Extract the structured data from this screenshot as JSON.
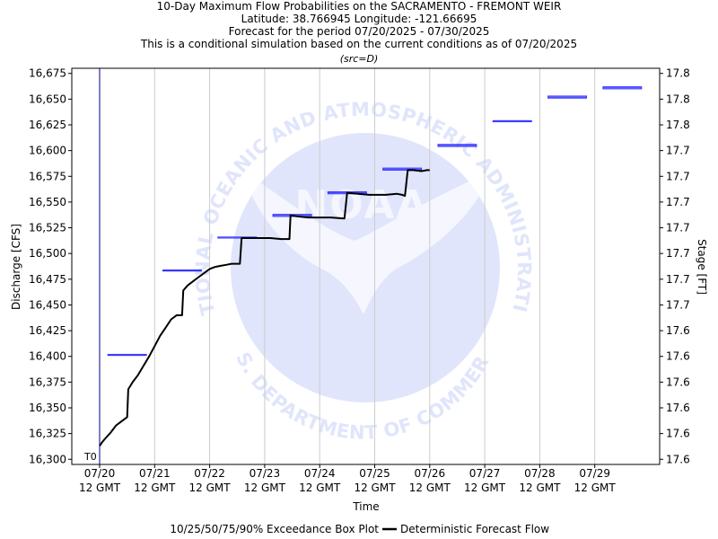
{
  "header": {
    "title": "10-Day Maximum Flow Probabilities on the SACRAMENTO - FREMONT WEIR",
    "location": "Latitude: 38.766945 Longitude: -121.66695",
    "period": "Forecast for the period 07/20/2025 - 07/30/2025",
    "note": "This is a conditional simulation based on the current conditions as of 07/20/2025",
    "source": "(src=D)"
  },
  "legend": {
    "box_label": "10/25/50/75/90% Exceedance Box Plot",
    "line_label": "Deterministic Forecast Flow"
  },
  "watermark": {
    "top_text": "NATIONAL OCEANIC AND ATMOSPHERIC ADMINISTRATION",
    "bottom_text": "U.S. DEPARTMENT OF COMMERCE",
    "logo_text": "NOAA"
  },
  "colors": {
    "box": "#3333ff",
    "line": "#000000",
    "t0": "#000080",
    "grid": "#cccccc",
    "watermark": "#dde3fb"
  },
  "chart_data": {
    "type": "line",
    "xlabel": "Time",
    "ylabel": "Discharge [CFS]",
    "y2label": "Stage [FT]",
    "t0_label": "T0",
    "xlim": [
      0,
      10.1
    ],
    "ylim": [
      16295,
      16680
    ],
    "x_ticks": [
      {
        "x": 0,
        "l1": "07/20",
        "l2": "12 GMT"
      },
      {
        "x": 1,
        "l1": "07/21",
        "l2": "12 GMT"
      },
      {
        "x": 2,
        "l1": "07/22",
        "l2": "12 GMT"
      },
      {
        "x": 3,
        "l1": "07/23",
        "l2": "12 GMT"
      },
      {
        "x": 4,
        "l1": "07/24",
        "l2": "12 GMT"
      },
      {
        "x": 5,
        "l1": "07/25",
        "l2": "12 GMT"
      },
      {
        "x": 6,
        "l1": "07/26",
        "l2": "12 GMT"
      },
      {
        "x": 7,
        "l1": "07/27",
        "l2": "12 GMT"
      },
      {
        "x": 8,
        "l1": "07/28",
        "l2": "12 GMT"
      },
      {
        "x": 9,
        "l1": "07/29",
        "l2": "12 GMT"
      }
    ],
    "y_ticks": [
      {
        "v": 16300,
        "l": "16,300"
      },
      {
        "v": 16325,
        "l": "16,325"
      },
      {
        "v": 16350,
        "l": "16,350"
      },
      {
        "v": 16375,
        "l": "16,375"
      },
      {
        "v": 16400,
        "l": "16,400"
      },
      {
        "v": 16425,
        "l": "16,425"
      },
      {
        "v": 16450,
        "l": "16,450"
      },
      {
        "v": 16475,
        "l": "16,475"
      },
      {
        "v": 16500,
        "l": "16,500"
      },
      {
        "v": 16525,
        "l": "16,525"
      },
      {
        "v": 16550,
        "l": "16,550"
      },
      {
        "v": 16575,
        "l": "16,575"
      },
      {
        "v": 16600,
        "l": "16,600"
      },
      {
        "v": 16625,
        "l": "16,625"
      },
      {
        "v": 16650,
        "l": "16,650"
      },
      {
        "v": 16675,
        "l": "16,675"
      }
    ],
    "y2_ticks": [
      {
        "v": 16300,
        "l": "17.6"
      },
      {
        "v": 16325,
        "l": "17.6"
      },
      {
        "v": 16350,
        "l": "17.6"
      },
      {
        "v": 16375,
        "l": "17.6"
      },
      {
        "v": 16400,
        "l": "17.6"
      },
      {
        "v": 16425,
        "l": "17.6"
      },
      {
        "v": 16450,
        "l": "17.7"
      },
      {
        "v": 16475,
        "l": "17.7"
      },
      {
        "v": 16500,
        "l": "17.7"
      },
      {
        "v": 16525,
        "l": "17.7"
      },
      {
        "v": 16550,
        "l": "17.7"
      },
      {
        "v": 16575,
        "l": "17.7"
      },
      {
        "v": 16600,
        "l": "17.7"
      },
      {
        "v": 16625,
        "l": "17.8"
      },
      {
        "v": 16650,
        "l": "17.8"
      },
      {
        "v": 16675,
        "l": "17.8"
      }
    ],
    "exceedance_boxes": [
      {
        "x0": 0.15,
        "x1": 0.85,
        "values": [
          16401,
          16401,
          16401,
          16402,
          16402
        ]
      },
      {
        "x0": 1.15,
        "x1": 1.85,
        "values": [
          16483,
          16483,
          16483,
          16484,
          16484
        ]
      },
      {
        "x0": 2.15,
        "x1": 2.85,
        "values": [
          16515,
          16515,
          16515,
          16516,
          16516
        ]
      },
      {
        "x0": 3.15,
        "x1": 3.85,
        "values": [
          16536,
          16537,
          16537,
          16538,
          16538
        ]
      },
      {
        "x0": 4.15,
        "x1": 4.85,
        "values": [
          16558,
          16559,
          16559,
          16560,
          16560
        ]
      },
      {
        "x0": 5.15,
        "x1": 5.85,
        "values": [
          16581,
          16581,
          16582,
          16583,
          16583
        ]
      },
      {
        "x0": 6.15,
        "x1": 6.85,
        "values": [
          16604,
          16604,
          16605,
          16606,
          16606
        ]
      },
      {
        "x0": 7.15,
        "x1": 7.85,
        "values": [
          16628,
          16628,
          16629,
          16629,
          16629
        ]
      },
      {
        "x0": 8.15,
        "x1": 8.85,
        "values": [
          16651,
          16651,
          16652,
          16653,
          16653
        ]
      },
      {
        "x0": 9.15,
        "x1": 9.85,
        "values": [
          16660,
          16660,
          16661,
          16662,
          16662
        ]
      }
    ],
    "deterministic": {
      "x": [
        0,
        0.05,
        0.1,
        0.2,
        0.3,
        0.4,
        0.5,
        0.52,
        0.6,
        0.7,
        0.8,
        0.9,
        1.0,
        1.1,
        1.2,
        1.3,
        1.4,
        1.5,
        1.52,
        1.6,
        1.7,
        1.8,
        1.9,
        2.0,
        2.1,
        2.2,
        2.3,
        2.4,
        2.55,
        2.58,
        2.7,
        2.9,
        3.1,
        3.3,
        3.45,
        3.47,
        3.6,
        3.8,
        4.0,
        4.2,
        4.45,
        4.5,
        4.7,
        4.9,
        5.0,
        5.2,
        5.4,
        5.5,
        5.55,
        5.6,
        5.7,
        5.85,
        5.95,
        6.0
      ],
      "y": [
        16313,
        16317,
        16320,
        16326,
        16333,
        16337,
        16341,
        16368,
        16375,
        16382,
        16391,
        16400,
        16410,
        16420,
        16428,
        16436,
        16440,
        16440,
        16464,
        16469,
        16473,
        16477,
        16481,
        16485,
        16487,
        16488,
        16489,
        16490,
        16490,
        16515,
        16515,
        16515,
        16515,
        16514,
        16514,
        16537,
        16536,
        16535,
        16535,
        16535,
        16534,
        16559,
        16558,
        16557,
        16557,
        16557,
        16558,
        16557,
        16556,
        16581,
        16581,
        16580,
        16581,
        16581
      ]
    }
  }
}
